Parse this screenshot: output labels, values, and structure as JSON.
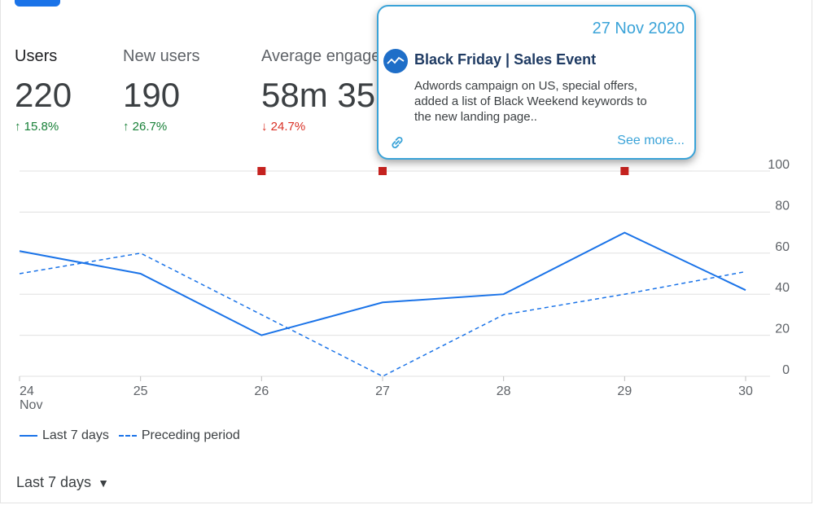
{
  "metrics": [
    {
      "label": "Users",
      "value": "220",
      "delta": "↑ 15.8%",
      "direction": "up"
    },
    {
      "label": "New users",
      "value": "190",
      "delta": "↑ 26.7%",
      "direction": "up"
    },
    {
      "label": "Average engage",
      "value": "58m 35",
      "delta": "↓ 24.7%",
      "direction": "down"
    }
  ],
  "tooltip": {
    "date": "27 Nov 2020",
    "title": "Black Friday | Sales Event",
    "body": "Adwords campaign on US, special offers, added a list of Black Weekend keywords to the new landing page..",
    "see_more": "See more...",
    "avatar_icon": "trend-line-icon",
    "link_icon": "link-icon"
  },
  "chart_data": {
    "type": "line",
    "x": [
      "24",
      "25",
      "26",
      "27",
      "28",
      "29",
      "30"
    ],
    "x_sublabel": "Nov",
    "ylim": [
      0,
      100
    ],
    "yticks": [
      "0",
      "20",
      "40",
      "60",
      "80",
      "100"
    ],
    "series": [
      {
        "name": "Last 7 days",
        "style": "solid",
        "values": [
          61,
          50,
          20,
          36,
          40,
          70,
          42
        ]
      },
      {
        "name": "Preceding period",
        "style": "dashed",
        "values": [
          50,
          60,
          30,
          0,
          30,
          40,
          51
        ]
      }
    ],
    "annotation_days": [
      "26",
      "27",
      "29"
    ],
    "colors": {
      "line": "#1a73e8",
      "annotation": "#c5221f",
      "grid": "#e0e0e0"
    }
  },
  "legend": {
    "items": [
      "Last 7 days",
      "Preceding period"
    ]
  },
  "date_range": {
    "label": "Last 7 days"
  }
}
